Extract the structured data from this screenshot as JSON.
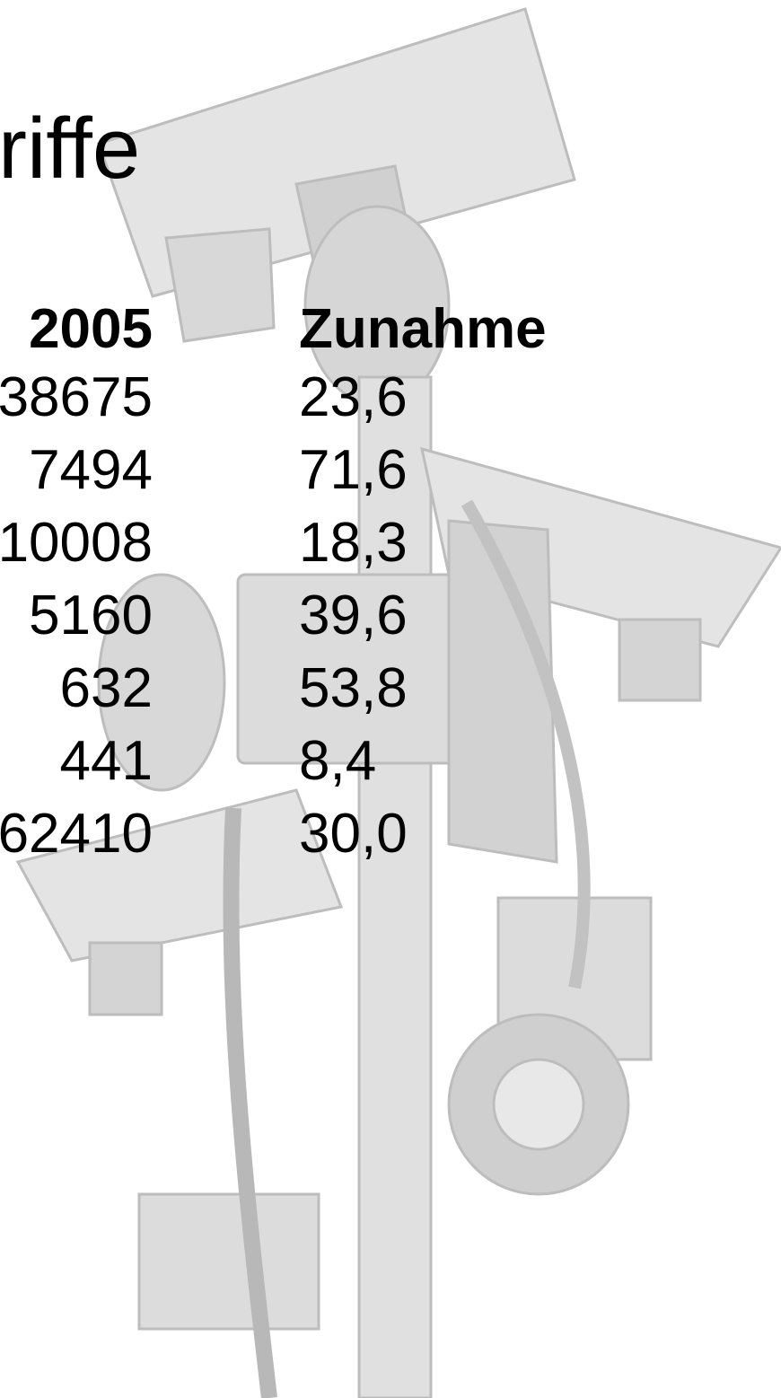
{
  "title": "riffe",
  "table": {
    "header": [
      "2005",
      "Zunahme"
    ],
    "rows": [
      [
        "38675",
        "23,6"
      ],
      [
        "7494",
        "71,6"
      ],
      [
        "10008",
        "18,3"
      ],
      [
        "5160",
        "39,6"
      ],
      [
        "632",
        "53,8"
      ],
      [
        "441",
        "8,4"
      ],
      [
        "62410",
        "30,0"
      ]
    ]
  }
}
